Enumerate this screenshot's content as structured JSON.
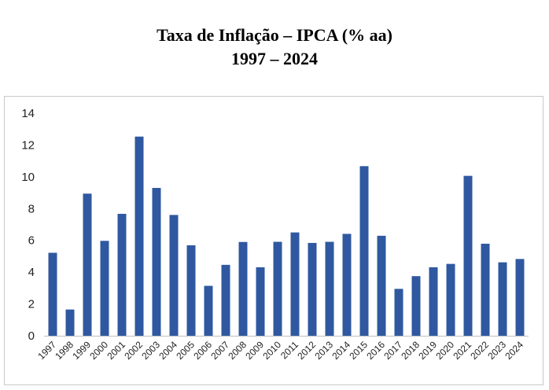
{
  "chart_data": {
    "type": "bar",
    "title": "Taxa de Inflação – IPCA (% aa)",
    "subtitle": "1997 – 2024",
    "xlabel": "",
    "ylabel": "",
    "ylim": [
      0,
      14
    ],
    "yticks": [
      "0",
      "2",
      "4",
      "6",
      "8",
      "10",
      "12",
      "14"
    ],
    "grid": false,
    "legend": "none",
    "bar_color": "#2f58a0",
    "categories": [
      "1997",
      "1998",
      "1999",
      "2000",
      "2001",
      "2002",
      "2003",
      "2004",
      "2005",
      "2006",
      "2007",
      "2008",
      "2009",
      "2010",
      "2011",
      "2012",
      "2013",
      "2014",
      "2015",
      "2016",
      "2017",
      "2018",
      "2019",
      "2020",
      "2021",
      "2022",
      "2023",
      "2024"
    ],
    "values": [
      5.22,
      1.65,
      8.94,
      5.97,
      7.67,
      12.53,
      9.3,
      7.6,
      5.69,
      3.14,
      4.46,
      5.9,
      4.31,
      5.91,
      6.5,
      5.84,
      5.91,
      6.41,
      10.67,
      6.29,
      2.95,
      3.75,
      4.31,
      4.52,
      10.06,
      5.79,
      4.62,
      4.83
    ]
  }
}
